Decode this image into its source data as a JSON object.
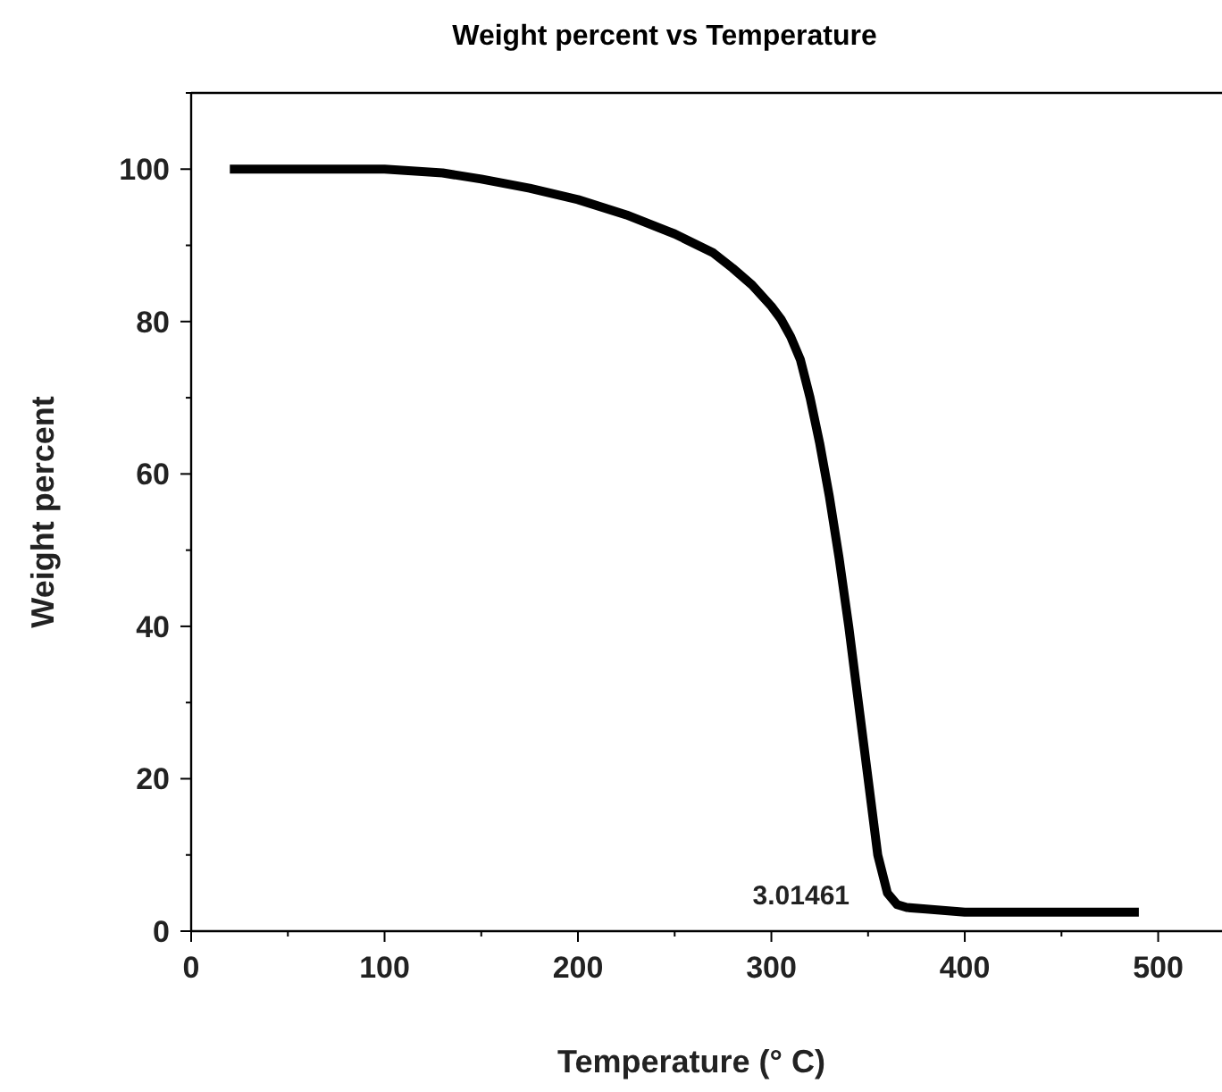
{
  "chart_data": {
    "type": "line",
    "title": "Weight percent vs Temperature",
    "xlabel": "Temperature (° C)",
    "ylabel": "Weight percent",
    "xlim": [
      0,
      533
    ],
    "ylim": [
      0,
      110
    ],
    "xticks": [
      0,
      100,
      200,
      300,
      400,
      500
    ],
    "yticks": [
      0,
      20,
      40,
      60,
      80,
      100
    ],
    "grid": false,
    "marker": "none",
    "line_style": "solid",
    "series": [
      {
        "color": "#000000",
        "x": [
          20,
          60,
          100,
          130,
          150,
          175,
          200,
          225,
          250,
          270,
          280,
          290,
          300,
          305,
          310,
          315,
          320,
          325,
          330,
          335,
          340,
          345,
          350,
          355,
          360,
          365,
          370,
          380,
          400,
          450,
          490
        ],
        "values": [
          100,
          100,
          100,
          99.5,
          98.7,
          97.5,
          96,
          94,
          91.5,
          89,
          87,
          84.8,
          82,
          80.3,
          78,
          75,
          70,
          64,
          57,
          49,
          40,
          30,
          20,
          10,
          5,
          3.5,
          3.1,
          2.9,
          2.5,
          2.5,
          2.5
        ]
      }
    ],
    "annotations": [
      {
        "text": "3.01461",
        "x": 370,
        "y": 3.01461
      }
    ]
  }
}
